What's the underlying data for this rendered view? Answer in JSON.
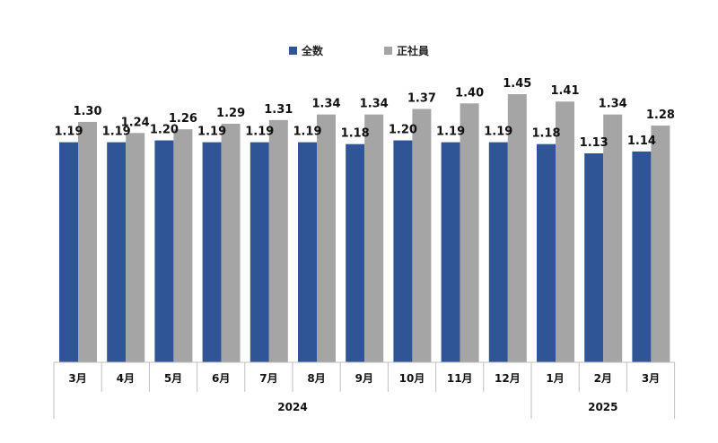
{
  "chart_data": {
    "type": "bar",
    "categories": [
      "3月",
      "4月",
      "5月",
      "6月",
      "7月",
      "8月",
      "9月",
      "10月",
      "11月",
      "12月",
      "1月",
      "2月",
      "3月"
    ],
    "years": [
      {
        "label": "2024",
        "count": 10
      },
      {
        "label": "2025",
        "count": 3
      }
    ],
    "series": [
      {
        "name": "全数",
        "color": "#2F5597",
        "values": [
          1.19,
          1.19,
          1.2,
          1.19,
          1.19,
          1.19,
          1.18,
          1.2,
          1.19,
          1.19,
          1.18,
          1.13,
          1.14
        ]
      },
      {
        "name": "正社員",
        "color": "#A5A5A5",
        "values": [
          1.3,
          1.24,
          1.26,
          1.29,
          1.31,
          1.34,
          1.34,
          1.37,
          1.4,
          1.45,
          1.41,
          1.34,
          1.28
        ]
      }
    ],
    "value_format": "0.00",
    "ylim": [
      0,
      1.45
    ],
    "legend": "top-center",
    "grid": false
  }
}
